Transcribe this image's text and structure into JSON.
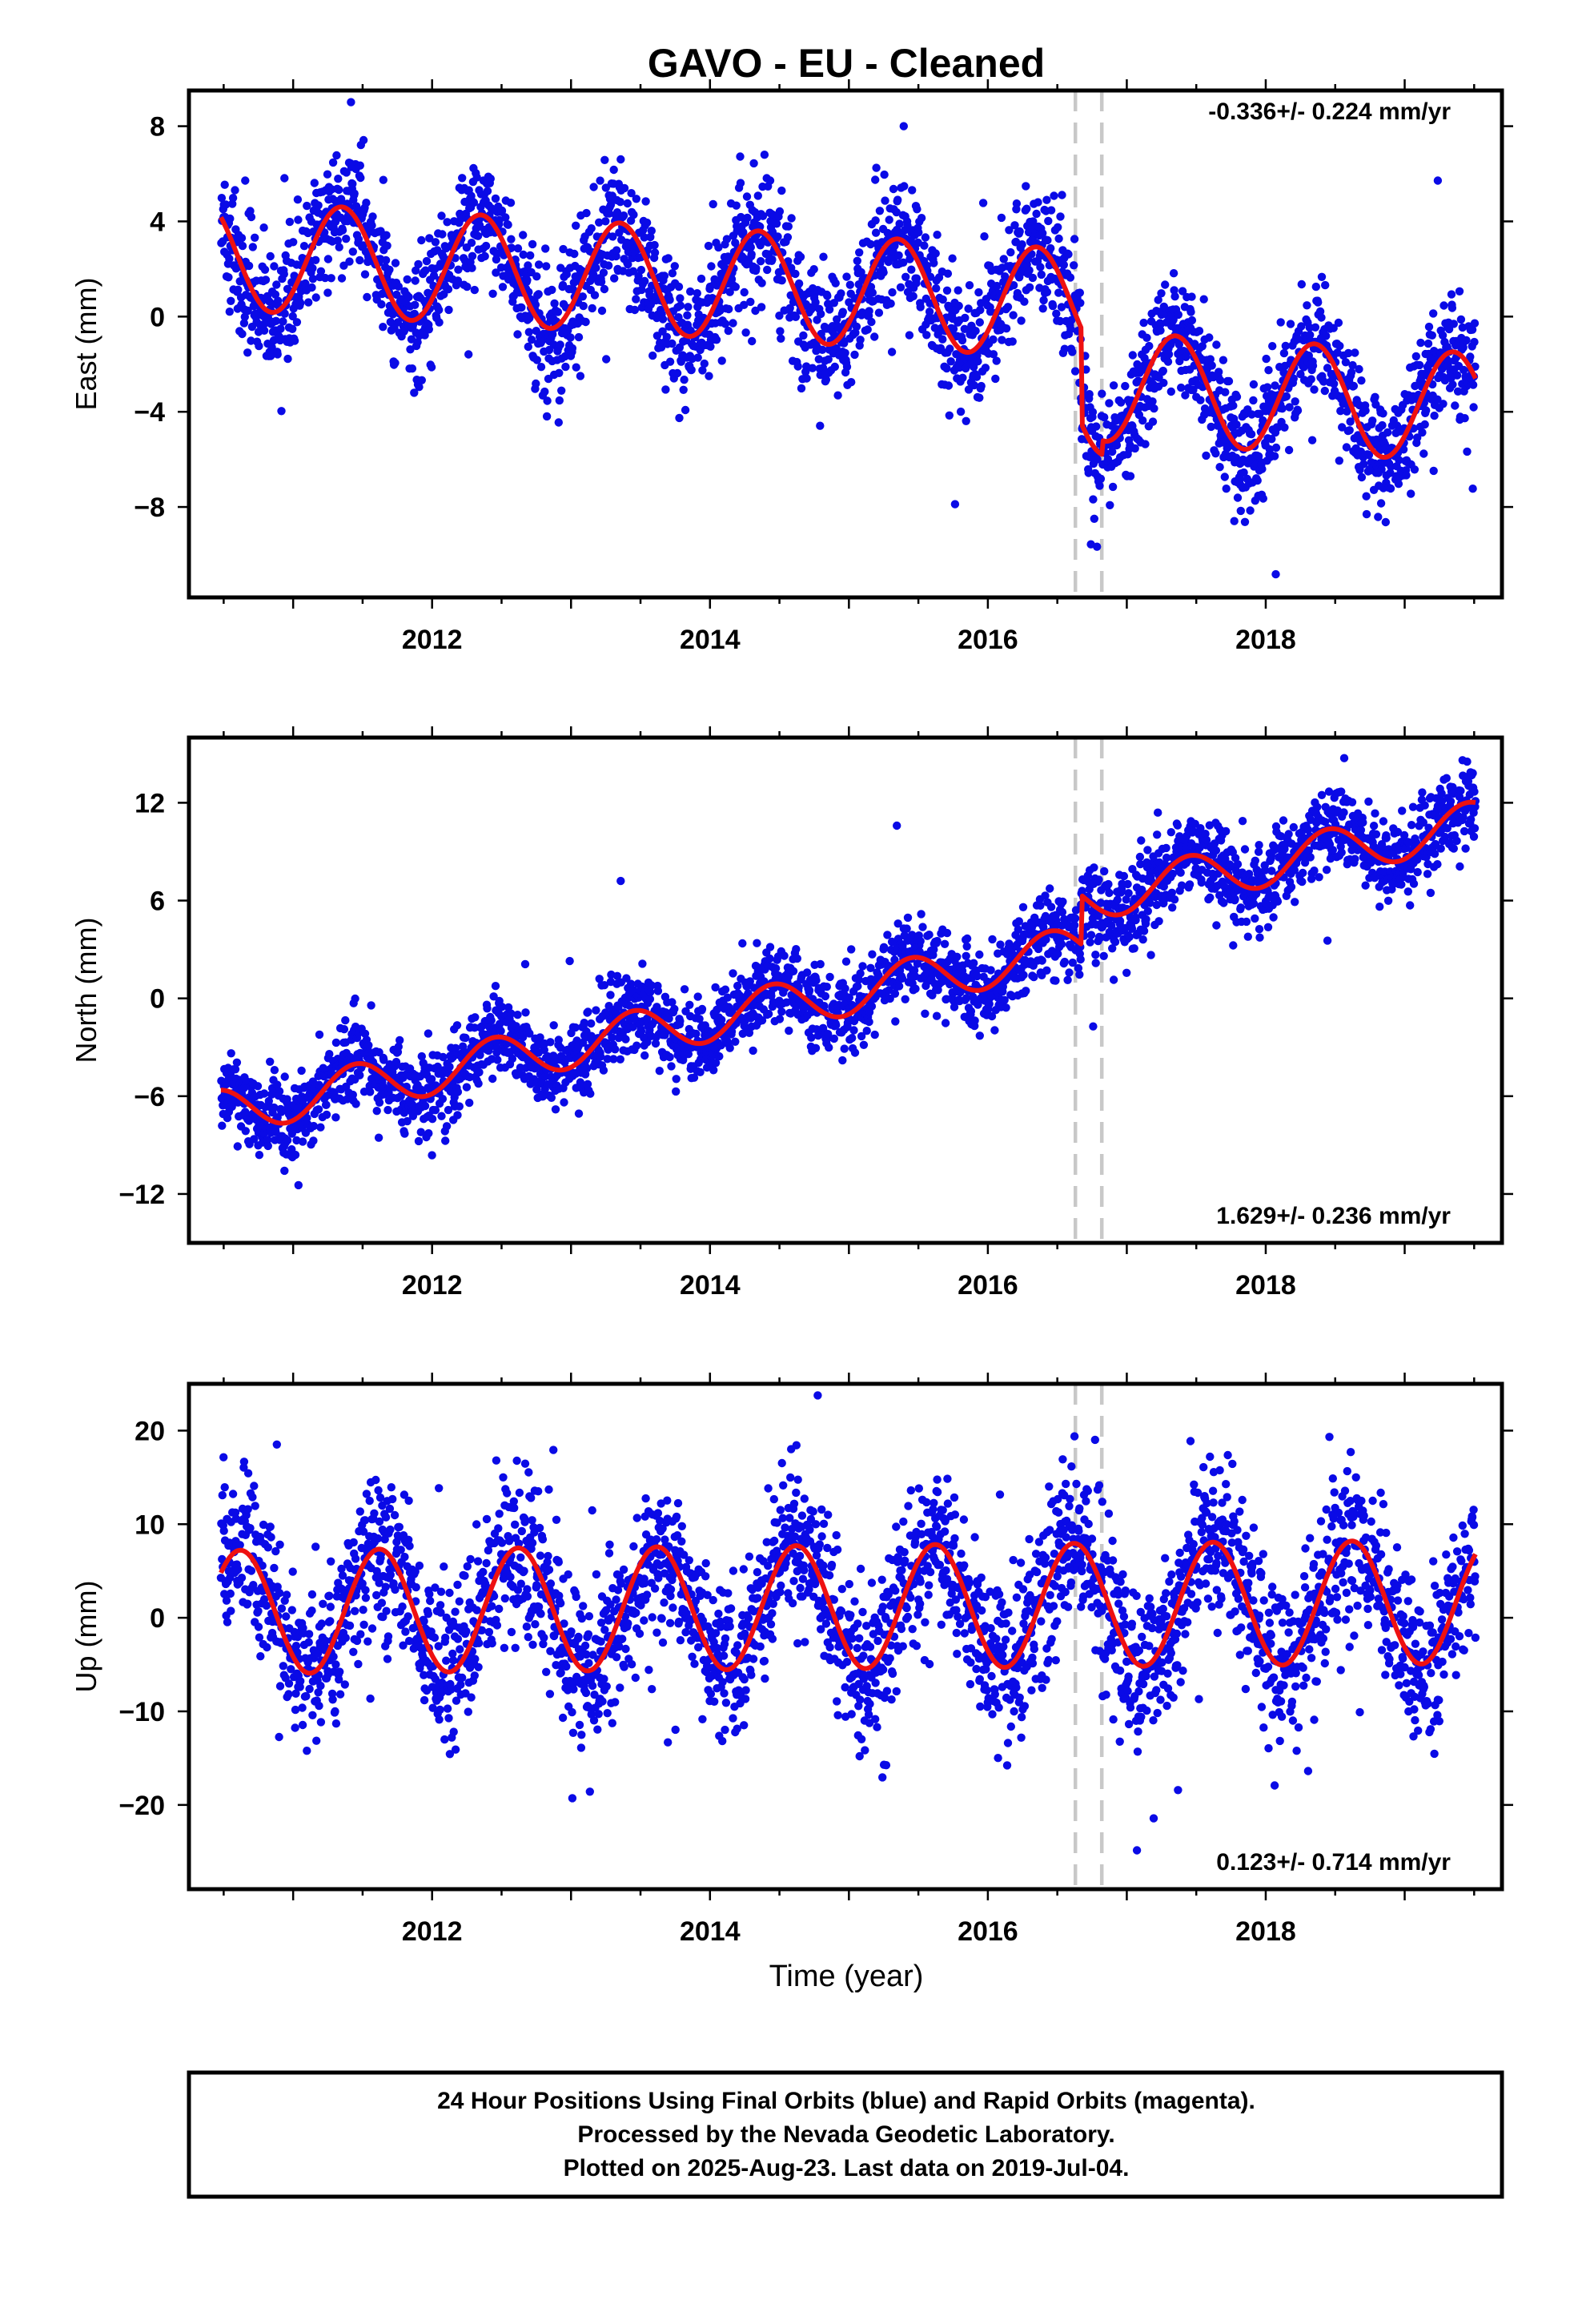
{
  "title": "GAVO  - EU - Cleaned",
  "x_axis_label": "Time (year)",
  "footer_lines": [
    "24 Hour Positions Using Final Orbits (blue) and Rapid Orbits (magenta).",
    "Processed by the Nevada Geodetic Laboratory.",
    "Plotted on 2025-Aug-23. Last data on 2019-Jul-04."
  ],
  "colors": {
    "data_points": "#0a0ae6",
    "model_fit": "#ee1111",
    "equipment_change_lines": "#c8c8c8"
  },
  "chart_data": [
    {
      "type": "scatter",
      "component": "east",
      "ylabel": "East (mm)",
      "rate": "-0.336+/- 0.224 mm/yr",
      "rate_position": "top-right",
      "xlim": [
        2010.25,
        2019.7
      ],
      "ylim": [
        -11.8,
        9.5
      ],
      "xticks": [
        2012,
        2014,
        2016,
        2018
      ],
      "xtick_labels": [
        "2012",
        "2014",
        "2016",
        "2018"
      ],
      "yticks": [
        8,
        4,
        0,
        -4,
        -8
      ],
      "ytick_labels": [
        "8",
        "4",
        "0",
        "−4",
        "−8"
      ],
      "vertical_dashed_lines": [
        2016.63,
        2016.82
      ],
      "data_start": 2010.48,
      "data_end": 2019.51,
      "model": {
        "offset": 2.6,
        "rate": -0.336,
        "annual_amp": 2.3,
        "annual_phase_year": 2011.35,
        "step_at": 2016.67,
        "step": -4.0,
        "second_step_at": 2016.82,
        "second_step": 0.6
      },
      "point_scatter_mm": 1.3
    },
    {
      "type": "scatter",
      "component": "north",
      "ylabel": "North (mm)",
      "rate": "1.629+/- 0.236 mm/yr",
      "rate_position": "bottom-right",
      "xlim": [
        2010.25,
        2019.7
      ],
      "ylim": [
        -15.0,
        16.0
      ],
      "xticks": [
        2012,
        2014,
        2016,
        2018
      ],
      "xtick_labels": [
        "2012",
        "2014",
        "2016",
        "2018"
      ],
      "yticks": [
        12,
        6,
        0,
        -6,
        -12
      ],
      "ytick_labels": [
        "12",
        "6",
        "0",
        "−6",
        "−12"
      ],
      "vertical_dashed_lines": [
        2016.63,
        2016.82
      ],
      "data_start": 2010.48,
      "data_end": 2019.51,
      "model": {
        "offset": -7.0,
        "rate": 1.629,
        "annual_amp": 1.4,
        "annual_phase_year": 2011.45,
        "step_at": 2016.67,
        "step": 3.0,
        "second_step_at": 2016.82,
        "second_step": 0.0
      },
      "point_scatter_mm": 1.3
    },
    {
      "type": "scatter",
      "component": "up",
      "ylabel": "Up (mm)",
      "rate": "0.123+/- 0.714 mm/yr",
      "rate_position": "bottom-right",
      "xlim": [
        2010.25,
        2019.7
      ],
      "ylim": [
        -29.0,
        25.0
      ],
      "xticks": [
        2012,
        2014,
        2016,
        2018
      ],
      "xtick_labels": [
        "2012",
        "2014",
        "2016",
        "2018"
      ],
      "yticks": [
        20,
        10,
        0,
        -10,
        -20
      ],
      "ytick_labels": [
        "20",
        "10",
        "0",
        "−10",
        "−20"
      ],
      "vertical_dashed_lines": [
        2016.63,
        2016.82
      ],
      "data_start": 2010.48,
      "data_end": 2019.51,
      "model": {
        "offset": 0.6,
        "rate": 0.123,
        "annual_amp": 6.6,
        "annual_phase_year": 2011.62,
        "step_at": 2016.67,
        "step": 0.0,
        "second_step_at": 2016.82,
        "second_step": 0.0
      },
      "point_scatter_mm": 4.2
    }
  ]
}
